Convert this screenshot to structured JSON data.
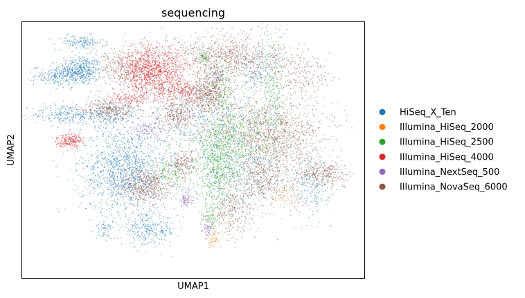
{
  "chart_data": {
    "type": "scatter",
    "title": "sequencing",
    "xlabel": "UMAP1",
    "ylabel": "UMAP2",
    "xticks": [],
    "yticks": [],
    "xlim": [
      0,
      100
    ],
    "ylim": [
      0,
      100
    ],
    "grid": false,
    "legend_position": "right",
    "series": [
      {
        "name": "HiSeq_X_Ten",
        "color": "#1f77b4",
        "clusters": [
          {
            "x": 17,
            "y": 81,
            "sx": 3.2,
            "sy": 2.8,
            "n": 500
          },
          {
            "x": 10,
            "y": 79,
            "sx": 3.2,
            "sy": 1.8,
            "n": 200
          },
          {
            "x": 17,
            "y": 92,
            "sx": 3.5,
            "sy": 1.4,
            "n": 160
          },
          {
            "x": 12,
            "y": 64,
            "sx": 4.5,
            "sy": 2.0,
            "n": 220
          },
          {
            "x": 25,
            "y": 64,
            "sx": 4.5,
            "sy": 2.4,
            "n": 260
          },
          {
            "x": 30,
            "y": 42,
            "sx": 6.5,
            "sy": 8.5,
            "n": 1400
          },
          {
            "x": 37,
            "y": 19,
            "sx": 4.0,
            "sy": 3.0,
            "n": 300
          },
          {
            "x": 55,
            "y": 60,
            "sx": 11.0,
            "sy": 7.5,
            "n": 800
          },
          {
            "x": 64,
            "y": 42,
            "sx": 6.5,
            "sy": 9.0,
            "n": 500
          },
          {
            "x": 84,
            "y": 37,
            "sx": 3.0,
            "sy": 6.0,
            "n": 240
          },
          {
            "x": 68,
            "y": 81,
            "sx": 2.5,
            "sy": 5.0,
            "n": 150
          },
          {
            "x": 24,
            "y": 19,
            "sx": 1.2,
            "sy": 2.5,
            "n": 60
          }
        ]
      },
      {
        "name": "Illumina_HiSeq_2000",
        "color": "#ff7f0e",
        "clusters": [
          {
            "x": 64,
            "y": 58,
            "sx": 9.0,
            "sy": 7.0,
            "n": 260
          },
          {
            "x": 56,
            "y": 16,
            "sx": 1.0,
            "sy": 2.0,
            "n": 60
          },
          {
            "x": 77,
            "y": 32,
            "sx": 2.0,
            "sy": 2.5,
            "n": 60
          }
        ]
      },
      {
        "name": "Illumina_HiSeq_2500",
        "color": "#2ca02c",
        "clusters": [
          {
            "x": 57,
            "y": 44,
            "sx": 3.5,
            "sy": 8.5,
            "n": 700
          },
          {
            "x": 64,
            "y": 55,
            "sx": 6.0,
            "sy": 7.0,
            "n": 450
          },
          {
            "x": 73,
            "y": 76,
            "sx": 2.0,
            "sy": 10.0,
            "n": 280
          },
          {
            "x": 58,
            "y": 74,
            "sx": 2.0,
            "sy": 6.0,
            "n": 200
          },
          {
            "x": 53,
            "y": 86,
            "sx": 1.0,
            "sy": 1.5,
            "n": 60
          },
          {
            "x": 43,
            "y": 42,
            "sx": 2.5,
            "sy": 3.0,
            "n": 140
          },
          {
            "x": 55,
            "y": 24,
            "sx": 1.2,
            "sy": 2.5,
            "n": 80
          }
        ]
      },
      {
        "name": "Illumina_HiSeq_4000",
        "color": "#d62728",
        "clusters": [
          {
            "x": 38,
            "y": 81,
            "sx": 5.0,
            "sy": 5.0,
            "n": 1200
          },
          {
            "x": 46,
            "y": 73,
            "sx": 4.0,
            "sy": 2.0,
            "n": 250
          },
          {
            "x": 14,
            "y": 54,
            "sx": 2.0,
            "sy": 1.3,
            "n": 220
          },
          {
            "x": 31,
            "y": 70,
            "sx": 3.0,
            "sy": 1.3,
            "n": 120
          }
        ]
      },
      {
        "name": "Illumina_NextSeq_500",
        "color": "#9467bd",
        "clusters": [
          {
            "x": 48,
            "y": 31,
            "sx": 1.0,
            "sy": 2.0,
            "n": 100
          },
          {
            "x": 54,
            "y": 20,
            "sx": 0.9,
            "sy": 1.6,
            "n": 60
          },
          {
            "x": 36,
            "y": 58,
            "sx": 2.5,
            "sy": 1.5,
            "n": 120
          },
          {
            "x": 57,
            "y": 79,
            "sx": 1.0,
            "sy": 2.0,
            "n": 60
          },
          {
            "x": 74,
            "y": 86,
            "sx": 1.2,
            "sy": 2.5,
            "n": 40
          }
        ]
      },
      {
        "name": "Illumina_NovaSeq_6000",
        "color": "#8c564b",
        "clusters": [
          {
            "x": 60,
            "y": 86,
            "sx": 8.0,
            "sy": 5.0,
            "n": 900
          },
          {
            "x": 54,
            "y": 72,
            "sx": 3.0,
            "sy": 3.5,
            "n": 500
          },
          {
            "x": 75,
            "y": 56,
            "sx": 7.0,
            "sy": 7.0,
            "n": 900
          },
          {
            "x": 88,
            "y": 41,
            "sx": 3.5,
            "sy": 2.5,
            "n": 300
          },
          {
            "x": 70,
            "y": 38,
            "sx": 4.0,
            "sy": 5.0,
            "n": 400
          },
          {
            "x": 36,
            "y": 36,
            "sx": 4.0,
            "sy": 3.5,
            "n": 500
          },
          {
            "x": 47,
            "y": 45,
            "sx": 2.0,
            "sy": 3.0,
            "n": 200
          },
          {
            "x": 61,
            "y": 26,
            "sx": 3.0,
            "sy": 5.0,
            "n": 250
          },
          {
            "x": 30,
            "y": 82,
            "sx": 4.0,
            "sy": 4.0,
            "n": 300
          },
          {
            "x": 26,
            "y": 66,
            "sx": 4.0,
            "sy": 2.0,
            "n": 300
          },
          {
            "x": 82,
            "y": 79,
            "sx": 4.0,
            "sy": 4.0,
            "n": 200
          },
          {
            "x": 45,
            "y": 64,
            "sx": 3.0,
            "sy": 3.0,
            "n": 300
          }
        ]
      }
    ]
  }
}
